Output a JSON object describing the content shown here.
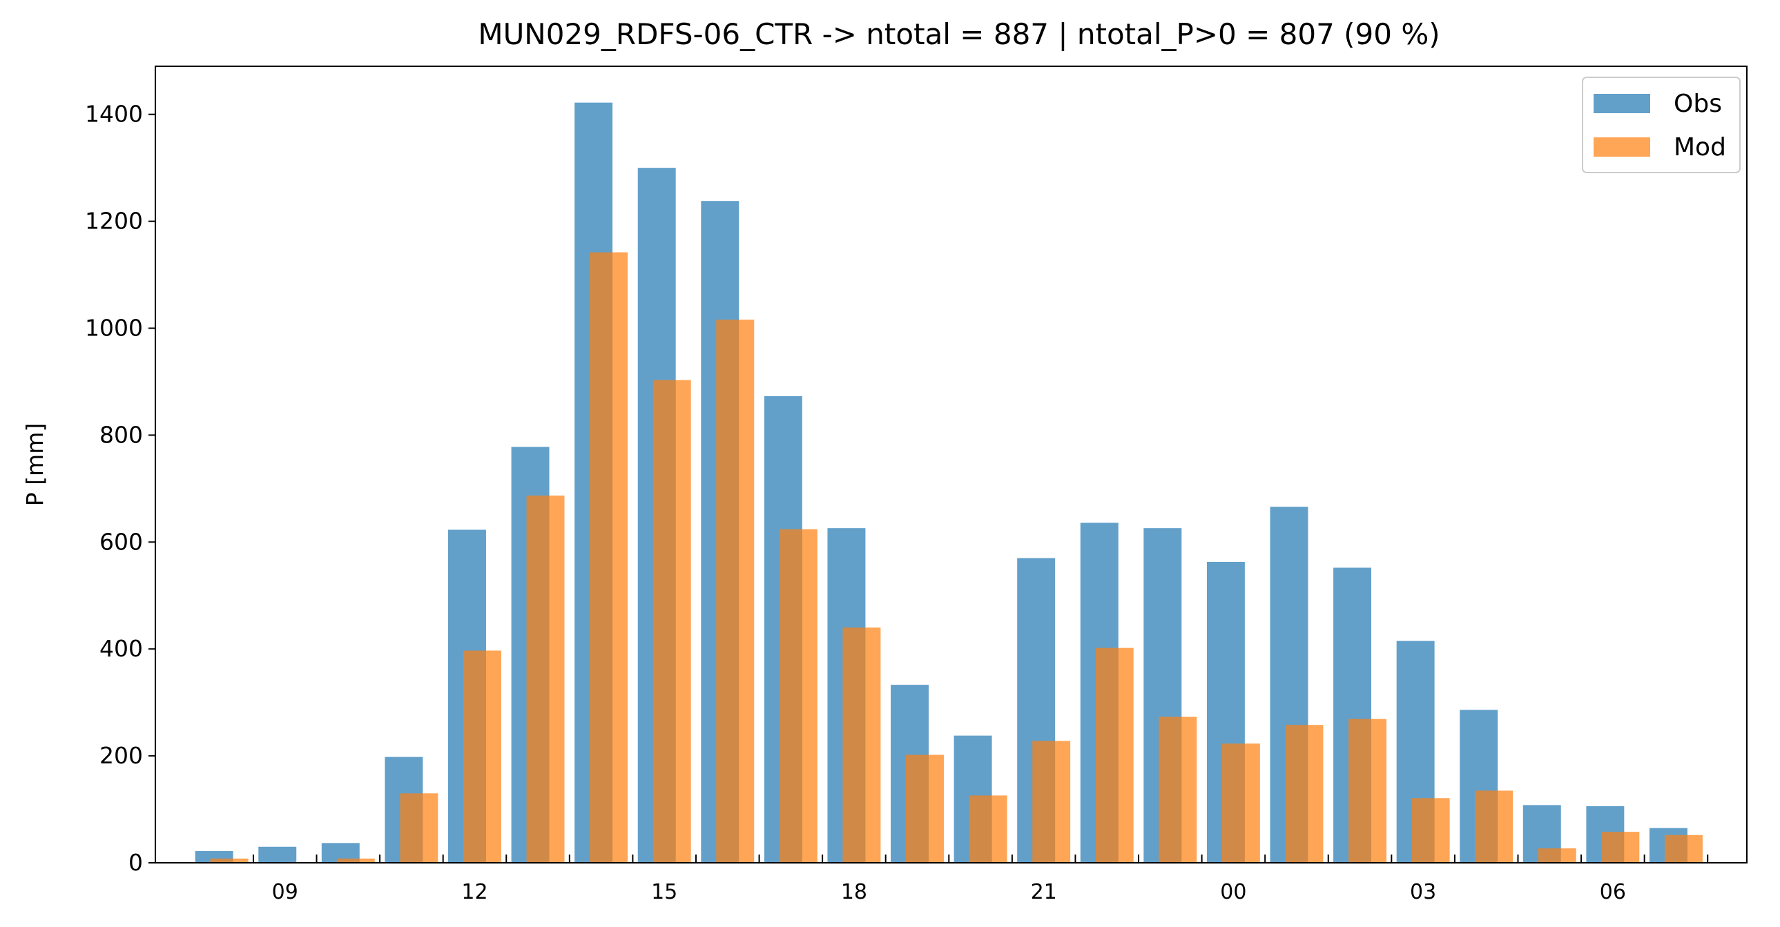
{
  "chart_data": {
    "type": "bar",
    "title": "MUN029_RDFS-06_CTR -> ntotal = 887 | ntotal_P>0 = 807 (90 %)",
    "xlabel": "",
    "ylabel": "P [mm]",
    "ylim": [
      0,
      1490
    ],
    "yticks": [
      0,
      200,
      400,
      600,
      800,
      1000,
      1200,
      1400
    ],
    "hours": [
      8,
      9,
      10,
      11,
      12,
      13,
      14,
      15,
      16,
      17,
      18,
      19,
      20,
      21,
      22,
      23,
      24,
      25,
      26,
      27,
      28,
      29,
      30,
      31
    ],
    "xtick_labels": [
      {
        "hour": 9,
        "label": "09"
      },
      {
        "hour": 12,
        "label": "12"
      },
      {
        "hour": 15,
        "label": "15"
      },
      {
        "hour": 18,
        "label": "18"
      },
      {
        "hour": 21,
        "label": "21"
      },
      {
        "hour": 24,
        "label": "00"
      },
      {
        "hour": 27,
        "label": "03"
      },
      {
        "hour": 30,
        "label": "06"
      }
    ],
    "series": [
      {
        "name": "Obs",
        "color": "#1f77b4",
        "values": [
          22,
          30,
          37,
          198,
          623,
          778,
          1422,
          1300,
          1238,
          873,
          626,
          333,
          238,
          570,
          636,
          626,
          563,
          666,
          552,
          415,
          286,
          108,
          106,
          65
        ]
      },
      {
        "name": "Mod",
        "color": "#ff7f0e",
        "values": [
          8,
          0,
          8,
          130,
          397,
          687,
          1142,
          903,
          1016,
          624,
          440,
          202,
          126,
          228,
          402,
          273,
          223,
          258,
          269,
          121,
          135,
          27,
          58,
          52
        ]
      }
    ],
    "legend_position": "top-right",
    "grid": false
  }
}
